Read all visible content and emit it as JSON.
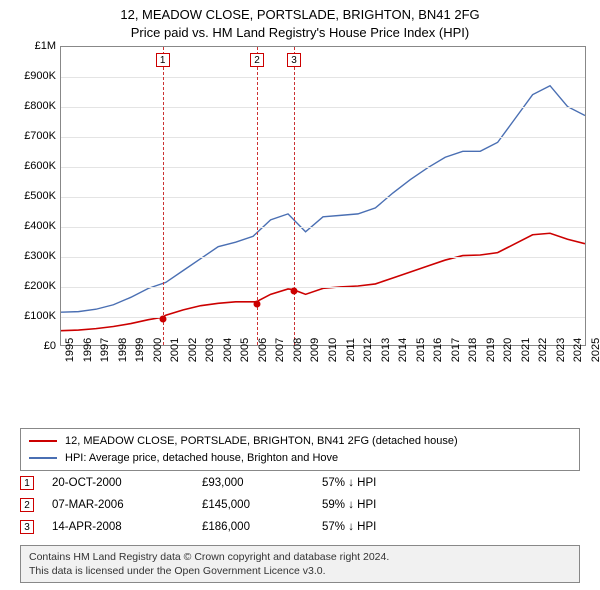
{
  "title": {
    "line1": "12, MEADOW CLOSE, PORTSLADE, BRIGHTON, BN41 2FG",
    "line2": "Price paid vs. HM Land Registry's House Price Index (HPI)"
  },
  "chart": {
    "type": "line",
    "background_color": "#ffffff",
    "grid_color": "#e4e4e4",
    "axis_color": "#888888",
    "xlim": [
      1995,
      2025
    ],
    "ylim": [
      0,
      1000000
    ],
    "ytick_step": 100000,
    "yticks": [
      {
        "v": 0,
        "label": "£0"
      },
      {
        "v": 100000,
        "label": "£100K"
      },
      {
        "v": 200000,
        "label": "£200K"
      },
      {
        "v": 300000,
        "label": "£300K"
      },
      {
        "v": 400000,
        "label": "£400K"
      },
      {
        "v": 500000,
        "label": "£500K"
      },
      {
        "v": 600000,
        "label": "£600K"
      },
      {
        "v": 700000,
        "label": "£700K"
      },
      {
        "v": 800000,
        "label": "£800K"
      },
      {
        "v": 900000,
        "label": "£900K"
      },
      {
        "v": 1000000,
        "label": "£1M"
      }
    ],
    "xticks": [
      1995,
      1996,
      1997,
      1998,
      1999,
      2000,
      2001,
      2002,
      2003,
      2004,
      2005,
      2006,
      2007,
      2008,
      2009,
      2010,
      2011,
      2012,
      2013,
      2014,
      2015,
      2016,
      2017,
      2018,
      2019,
      2020,
      2021,
      2022,
      2023,
      2024,
      2025
    ],
    "series": [
      {
        "name": "prop",
        "label": "12, MEADOW CLOSE, PORTSLADE, BRIGHTON, BN41 2FG (detached house)",
        "color": "#cc0000",
        "line_width": 1.6,
        "data": [
          [
            1995,
            48000
          ],
          [
            1996,
            50000
          ],
          [
            1997,
            55000
          ],
          [
            1998,
            62000
          ],
          [
            1999,
            72000
          ],
          [
            2000,
            85000
          ],
          [
            2000.8,
            93000
          ],
          [
            2001,
            100000
          ],
          [
            2002,
            118000
          ],
          [
            2003,
            132000
          ],
          [
            2004,
            140000
          ],
          [
            2005,
            145000
          ],
          [
            2006.18,
            145000
          ],
          [
            2007,
            170000
          ],
          [
            2008,
            188000
          ],
          [
            2008.29,
            186000
          ],
          [
            2009,
            170000
          ],
          [
            2010,
            190000
          ],
          [
            2011,
            195000
          ],
          [
            2012,
            198000
          ],
          [
            2013,
            205000
          ],
          [
            2014,
            225000
          ],
          [
            2015,
            245000
          ],
          [
            2016,
            265000
          ],
          [
            2017,
            285000
          ],
          [
            2018,
            300000
          ],
          [
            2019,
            302000
          ],
          [
            2020,
            310000
          ],
          [
            2021,
            340000
          ],
          [
            2022,
            370000
          ],
          [
            2023,
            375000
          ],
          [
            2024,
            355000
          ],
          [
            2025,
            340000
          ]
        ]
      },
      {
        "name": "hpi",
        "label": "HPI: Average price, detached house, Brighton and Hove",
        "color": "#4a6fb3",
        "line_width": 1.4,
        "data": [
          [
            1995,
            110000
          ],
          [
            1996,
            112000
          ],
          [
            1997,
            120000
          ],
          [
            1998,
            135000
          ],
          [
            1999,
            160000
          ],
          [
            2000,
            190000
          ],
          [
            2001,
            210000
          ],
          [
            2002,
            250000
          ],
          [
            2003,
            290000
          ],
          [
            2004,
            330000
          ],
          [
            2005,
            345000
          ],
          [
            2006,
            365000
          ],
          [
            2007,
            420000
          ],
          [
            2008,
            440000
          ],
          [
            2009,
            380000
          ],
          [
            2010,
            430000
          ],
          [
            2011,
            435000
          ],
          [
            2012,
            440000
          ],
          [
            2013,
            460000
          ],
          [
            2014,
            510000
          ],
          [
            2015,
            555000
          ],
          [
            2016,
            595000
          ],
          [
            2017,
            630000
          ],
          [
            2018,
            650000
          ],
          [
            2019,
            650000
          ],
          [
            2020,
            680000
          ],
          [
            2021,
            760000
          ],
          [
            2022,
            840000
          ],
          [
            2023,
            870000
          ],
          [
            2024,
            800000
          ],
          [
            2025,
            770000
          ]
        ]
      }
    ],
    "markers": [
      {
        "n": "1",
        "x": 2000.8,
        "y": 93000
      },
      {
        "n": "2",
        "x": 2006.18,
        "y": 145000
      },
      {
        "n": "3",
        "x": 2008.29,
        "y": 186000
      }
    ],
    "tick_fontsize": 11,
    "title_fontsize": 13
  },
  "legend": {
    "items": [
      {
        "series": "prop"
      },
      {
        "series": "hpi"
      }
    ]
  },
  "events": [
    {
      "n": "1",
      "date": "20-OCT-2000",
      "price": "£93,000",
      "delta": "57% ↓ HPI"
    },
    {
      "n": "2",
      "date": "07-MAR-2006",
      "price": "£145,000",
      "delta": "59% ↓ HPI"
    },
    {
      "n": "3",
      "date": "14-APR-2008",
      "price": "£186,000",
      "delta": "57% ↓ HPI"
    }
  ],
  "footer": {
    "line1": "Contains HM Land Registry data © Crown copyright and database right 2024.",
    "line2": "This data is licensed under the Open Government Licence v3.0."
  }
}
